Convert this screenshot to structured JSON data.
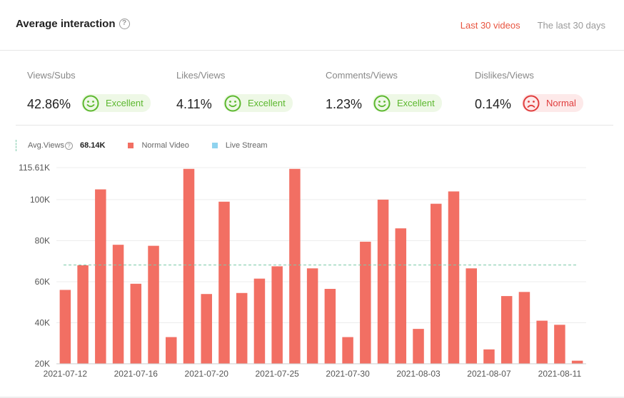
{
  "header": {
    "title": "Average interaction",
    "help_glyph": "?",
    "tabs": [
      {
        "label": "Last 30 videos",
        "active": true
      },
      {
        "label": "The last 30 days",
        "active": false
      }
    ]
  },
  "metrics": [
    {
      "label": "Views/Subs",
      "value": "42.86%",
      "rating": "Excellent",
      "status": "good",
      "icon": "smile-face-icon"
    },
    {
      "label": "Likes/Views",
      "value": "4.11%",
      "rating": "Excellent",
      "status": "good",
      "icon": "smile-face-icon"
    },
    {
      "label": "Comments/Views",
      "value": "1.23%",
      "rating": "Excellent",
      "status": "good",
      "icon": "smile-face-icon"
    },
    {
      "label": "Dislikes/Views",
      "value": "0.14%",
      "rating": "Normal",
      "status": "normal",
      "icon": "sad-face-icon"
    }
  ],
  "legend": {
    "avg_label": "Avg.Views",
    "avg_value": "68.14K",
    "normal_label": "Normal Video",
    "live_label": "Live Stream"
  },
  "colors": {
    "normal_video": "#f26f63",
    "live_stream": "#8fd3ef",
    "avg_line": "#7cc9a9",
    "accent": "#e8543f",
    "good": "#5cb82e",
    "bad": "#e03c3c"
  },
  "chart_data": {
    "type": "bar",
    "y_ticks": [
      "20K",
      "40K",
      "60K",
      "80K",
      "100K",
      "115.61K"
    ],
    "y_tick_values": [
      20000,
      40000,
      60000,
      80000,
      100000,
      115610
    ],
    "ylim": [
      20000,
      115610
    ],
    "x_tick_labels": [
      "2021-07-12",
      "2021-07-16",
      "2021-07-20",
      "2021-07-25",
      "2021-07-30",
      "2021-08-03",
      "2021-08-07",
      "2021-08-11"
    ],
    "x_tick_indices": [
      0,
      4,
      8,
      12,
      16,
      20,
      24,
      28
    ],
    "average": 68140,
    "series": [
      {
        "name": "Normal Video",
        "values": [
          56000,
          68000,
          105000,
          78000,
          59000,
          77500,
          33000,
          115000,
          54000,
          99000,
          54500,
          61500,
          67500,
          115000,
          66500,
          56500,
          33000,
          79500,
          100000,
          86000,
          37000,
          98000,
          104000,
          66500,
          27000,
          53000,
          55000,
          41000,
          39000,
          21500
        ]
      }
    ],
    "grid": true
  }
}
